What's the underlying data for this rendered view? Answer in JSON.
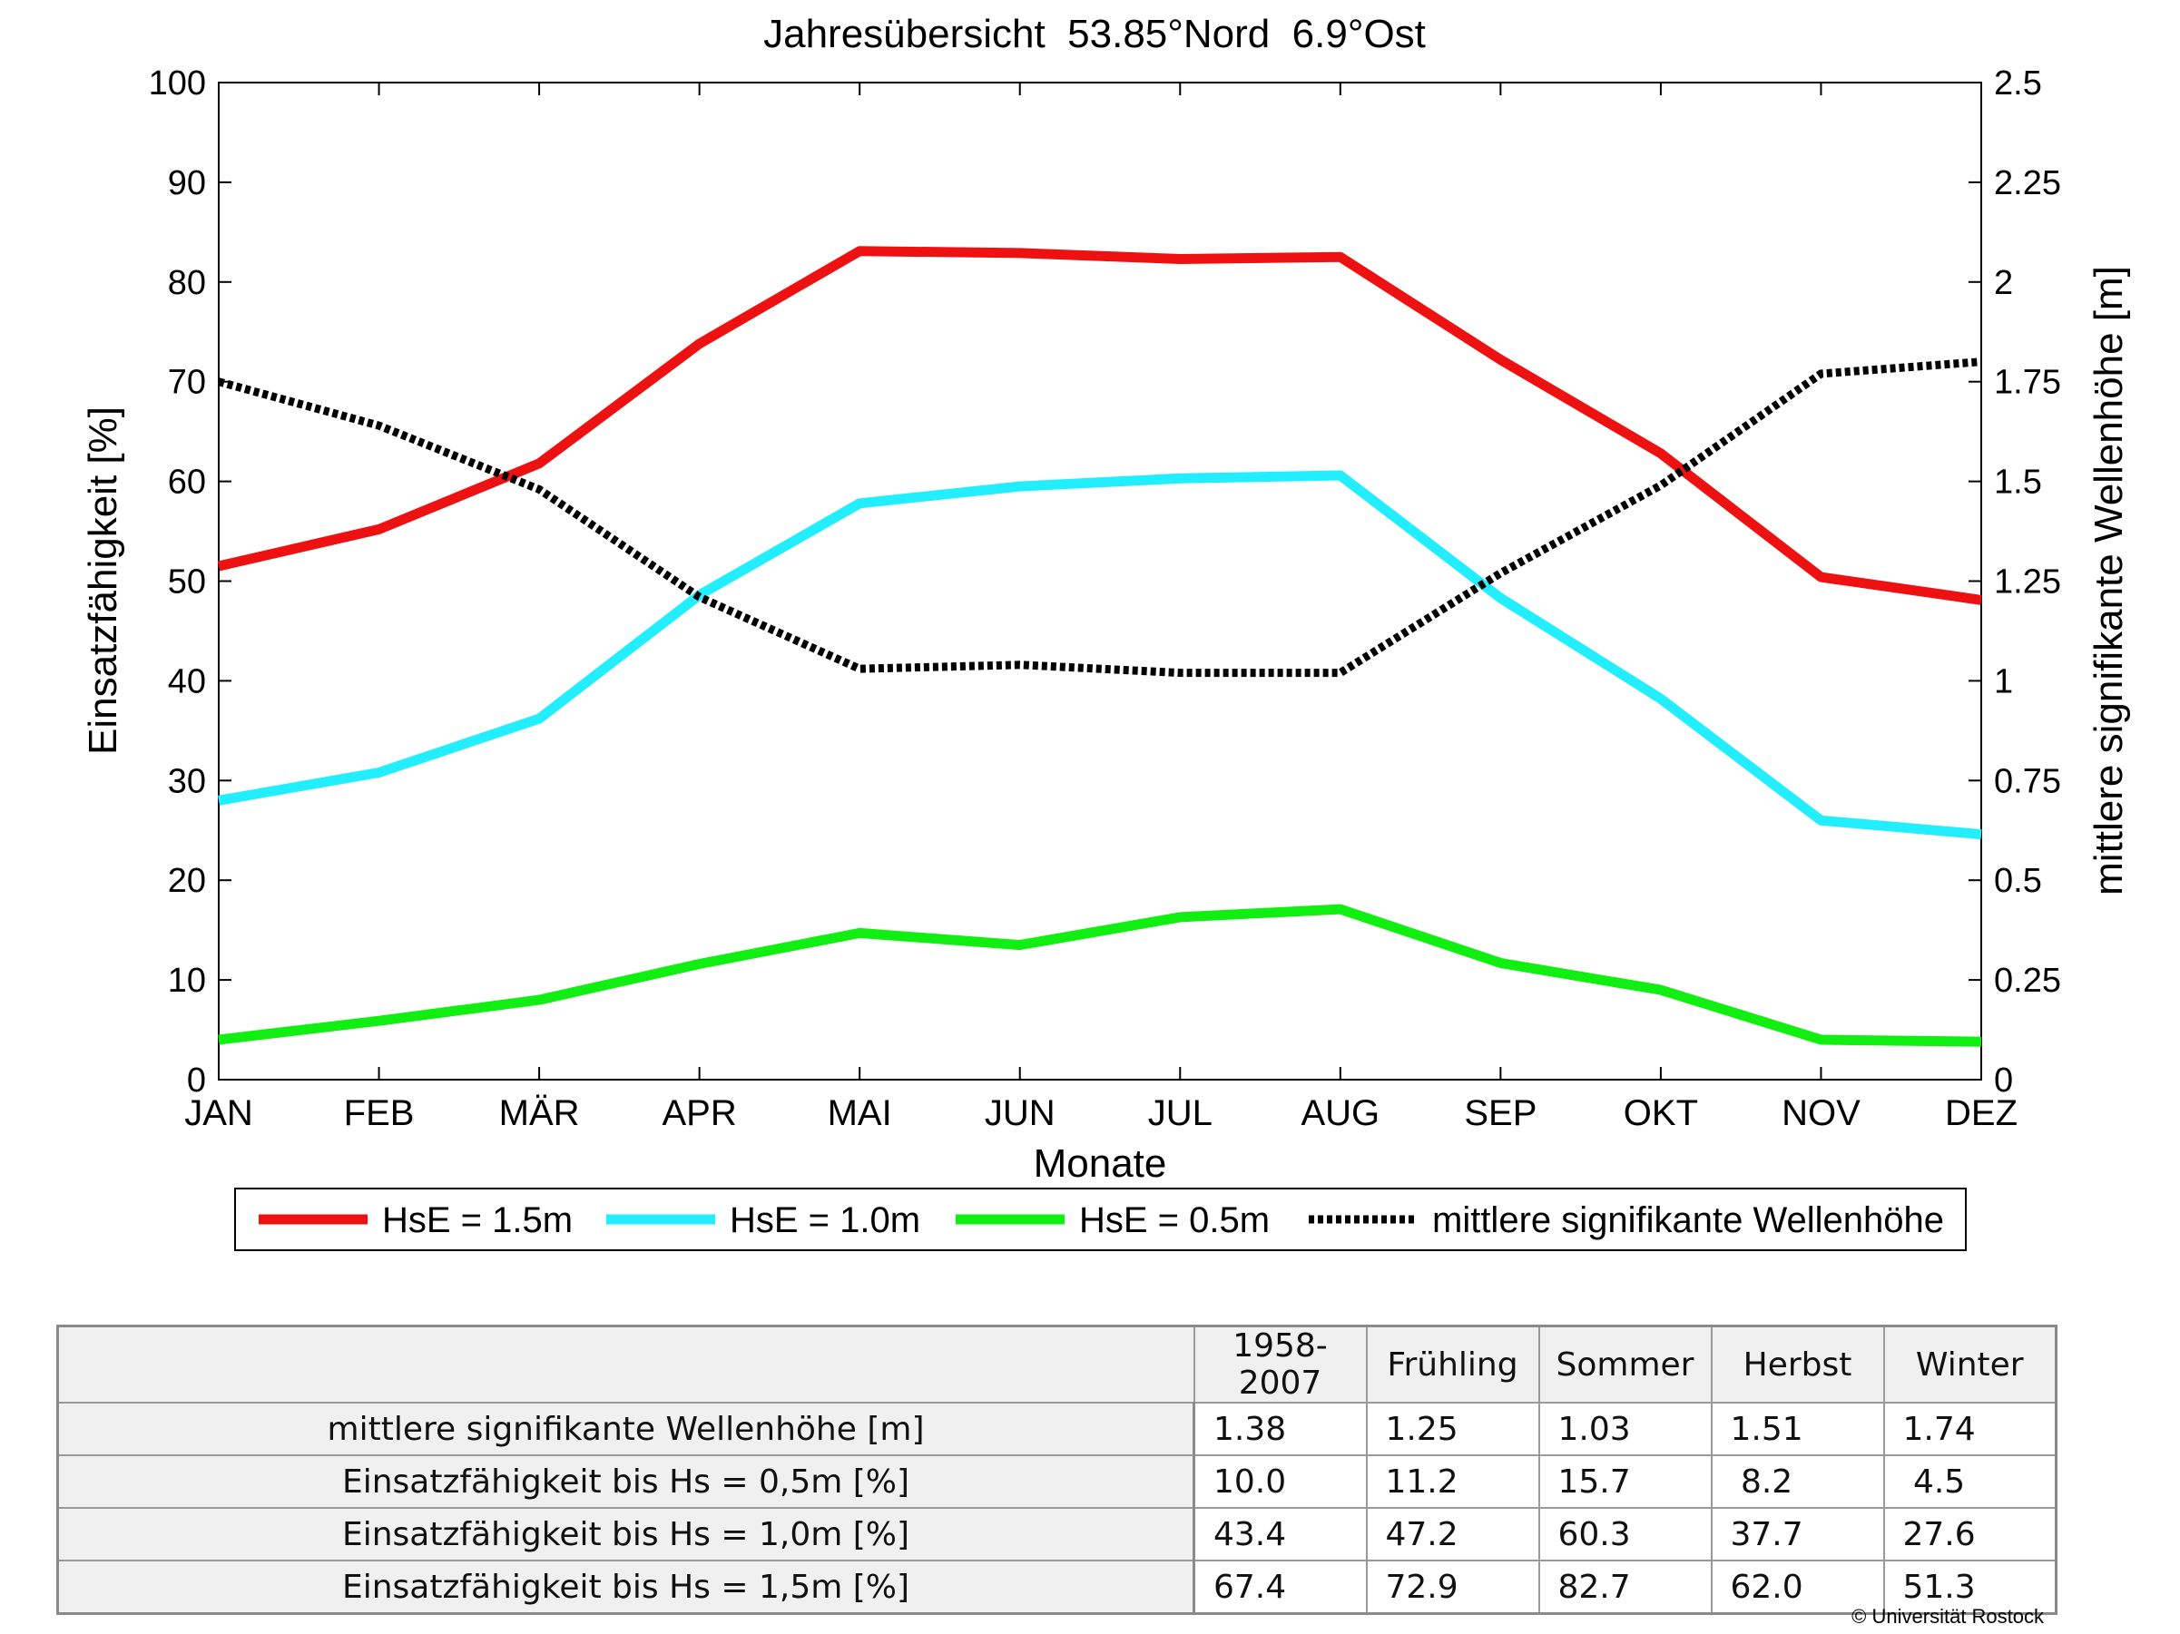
{
  "chart_data": {
    "type": "line",
    "title": "Jahresübersicht  53.85°Nord  6.9°Ost",
    "xlabel": "Monate",
    "ylabel_left": "Einsatzfähigkeit [%]",
    "ylabel_right": "mittlere signifikante Wellenhöhe [m]",
    "categories": [
      "JAN",
      "FEB",
      "MÄR",
      "APR",
      "MAI",
      "JUN",
      "JUL",
      "AUG",
      "SEP",
      "OKT",
      "NOV",
      "DEZ"
    ],
    "ylim_left": [
      0,
      100
    ],
    "yticks_left": [
      "0",
      "10",
      "20",
      "30",
      "40",
      "50",
      "60",
      "70",
      "80",
      "90",
      "100"
    ],
    "ylim_right": [
      0,
      2.5
    ],
    "yticks_right": [
      "0",
      "0.25",
      "0.5",
      "0.75",
      "1",
      "1.25",
      "1.5",
      "1.75",
      "2",
      "2.25",
      "2.5"
    ],
    "grid": false,
    "legend_position": "bottom",
    "series": [
      {
        "name": "HsE = 1.5m",
        "axis": "left",
        "color": "#ee1111",
        "style": "solid",
        "values": [
          51.5,
          55.2,
          61.8,
          73.8,
          83.1,
          82.9,
          82.3,
          82.5,
          72.2,
          62.8,
          50.4,
          48.1
        ]
      },
      {
        "name": "HsE = 1.0m",
        "axis": "left",
        "color": "#22eeff",
        "style": "solid",
        "values": [
          28.0,
          30.8,
          36.2,
          48.6,
          57.8,
          59.5,
          60.3,
          60.6,
          48.3,
          38.2,
          26.0,
          24.6
        ]
      },
      {
        "name": "HsE = 0.5m",
        "axis": "left",
        "color": "#11ee11",
        "style": "solid",
        "values": [
          4.0,
          5.9,
          8.0,
          11.6,
          14.7,
          13.5,
          16.3,
          17.1,
          11.7,
          9.0,
          4.0,
          3.8
        ]
      },
      {
        "name": "mittlere signifikante Wellenhöhe",
        "axis": "right",
        "color": "#000000",
        "style": "dotted",
        "values": [
          1.75,
          1.64,
          1.48,
          1.21,
          1.03,
          1.04,
          1.02,
          1.02,
          1.27,
          1.49,
          1.77,
          1.8
        ]
      }
    ]
  },
  "table": {
    "headers": [
      "",
      "1958-2007",
      "Frühling",
      "Sommer",
      "Herbst",
      "Winter"
    ],
    "rows": [
      {
        "label": "mittlere signifikante Wellenhöhe [m]",
        "values": [
          "1.38",
          "1.25",
          "1.03",
          "1.51",
          "1.74"
        ]
      },
      {
        "label": "Einsatzfähigkeit bis Hs = 0,5m [%]",
        "values": [
          "10.0",
          "11.2",
          "15.7",
          " 8.2",
          " 4.5"
        ]
      },
      {
        "label": "Einsatzfähigkeit bis Hs = 1,0m [%]",
        "values": [
          "43.4",
          "47.2",
          "60.3",
          "37.7",
          "27.6"
        ]
      },
      {
        "label": "Einsatzfähigkeit bis Hs = 1,5m [%]",
        "values": [
          "67.4",
          "72.9",
          "82.7",
          "62.0",
          "51.3"
        ]
      }
    ]
  },
  "copyright": "© Universität Rostock"
}
